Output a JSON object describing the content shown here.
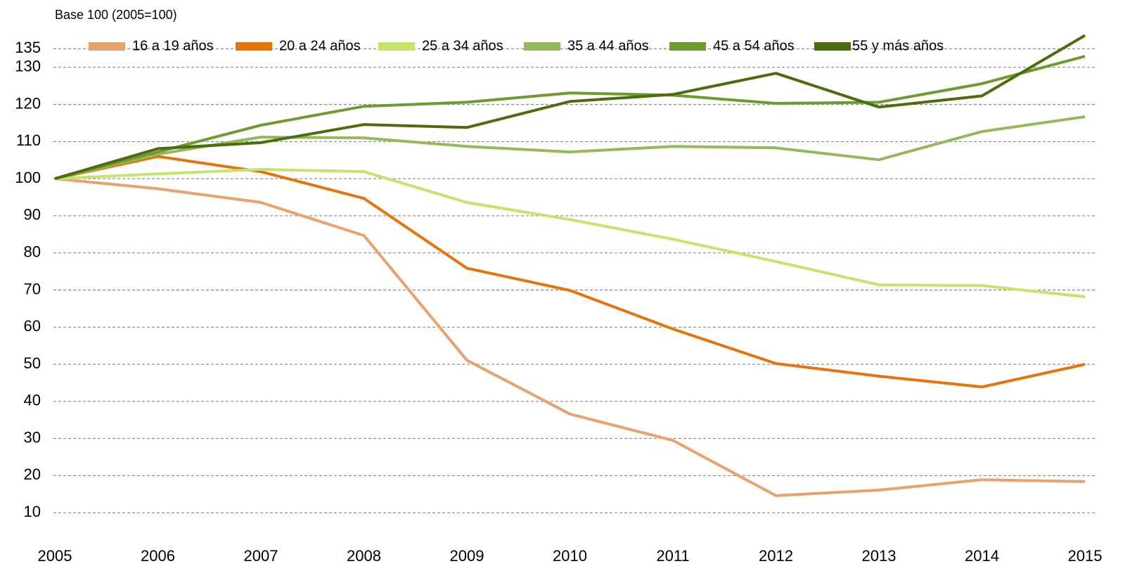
{
  "chart_data": {
    "type": "line",
    "title": "Base 100 (2005=100)",
    "x": [
      "2005",
      "2006",
      "2007",
      "2008",
      "2009",
      "2010",
      "2011",
      "2012",
      "2013",
      "2014",
      "2015"
    ],
    "series": [
      {
        "name": "16 a 19 años",
        "color": "#e9a26d",
        "values": [
          100,
          97.3,
          93.6,
          84.7,
          51.1,
          36.6,
          29.5,
          14.6,
          16.1,
          18.9,
          18.4
        ]
      },
      {
        "name": "20 a 24 años",
        "color": "#e8730c",
        "values": [
          100,
          106,
          101.9,
          94.7,
          75.9,
          69.9,
          59.5,
          50.2,
          46.8,
          43.9,
          50
        ]
      },
      {
        "name": "25 a 34 años",
        "color": "#c6e36c",
        "values": [
          100,
          101.3,
          102.5,
          101.9,
          93.6,
          89,
          83.7,
          77.7,
          71.4,
          71.2,
          68.2
        ]
      },
      {
        "name": "35 a 44 años",
        "color": "#94b95a",
        "values": [
          100,
          106.6,
          111.2,
          111,
          108.7,
          107.2,
          108.7,
          108.3,
          105.1,
          112.7,
          116.7
        ]
      },
      {
        "name": "45 a 54 años",
        "color": "#6f9a2f",
        "values": [
          100,
          107.2,
          114.4,
          119.5,
          120.6,
          123.1,
          122.5,
          120.3,
          120.6,
          125.6,
          133
        ]
      },
      {
        "name": "55 y más años",
        "color": "#4a6e0e",
        "values": [
          100,
          108.1,
          109.7,
          114.6,
          113.8,
          120.8,
          122.7,
          128.4,
          119.3,
          122.3,
          138.6
        ]
      }
    ],
    "ylim": [
      0,
      140
    ],
    "yticks": [
      10,
      20,
      30,
      40,
      50,
      60,
      70,
      80,
      90,
      100,
      110,
      120,
      130,
      135
    ],
    "grid": true
  }
}
